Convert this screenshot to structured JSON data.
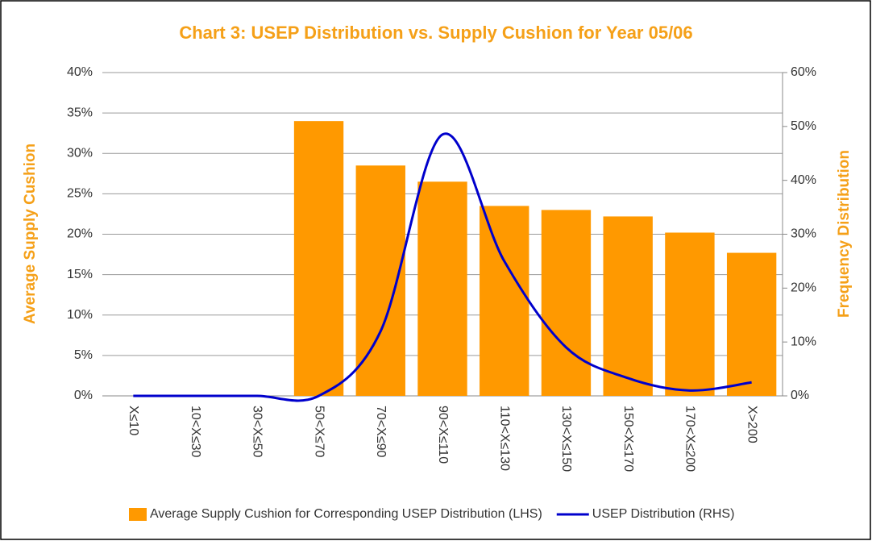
{
  "chart_data": {
    "type": "bar",
    "title": "Chart 3: USEP Distribution vs. Supply Cushion for Year 05/06",
    "ylabel": "Average Supply Cushion",
    "y2label": "Frequency Distribution",
    "categories": [
      "X≤10",
      "10<X≤30",
      "30<X≤50",
      "50<X≤70",
      "70<X≤90",
      "90<X≤110",
      "110<X≤130",
      "130<X≤150",
      "150<X≤170",
      "170<X≤200",
      "X>200"
    ],
    "series": [
      {
        "name": "Average Supply Cushion for Corresponding USEP Distribution (LHS)",
        "type": "bar",
        "color": "#ff9900",
        "values": [
          0,
          0,
          0,
          34,
          28.5,
          26.5,
          23.5,
          23,
          22.2,
          20.2,
          17.7
        ]
      },
      {
        "name": "USEP Distribution (RHS)",
        "type": "line",
        "axis": "y2",
        "color": "#0000cc",
        "values": [
          0,
          0,
          0,
          0,
          12,
          48.5,
          25,
          9,
          3.3,
          1,
          2.5
        ]
      }
    ],
    "ylim": [
      0,
      40
    ],
    "yticks": [
      {
        "value": 0,
        "label": "0%"
      },
      {
        "value": 5,
        "label": "5%"
      },
      {
        "value": 10,
        "label": "10%"
      },
      {
        "value": 15,
        "label": "15%"
      },
      {
        "value": 20,
        "label": "20%"
      },
      {
        "value": 25,
        "label": "25%"
      },
      {
        "value": 30,
        "label": "30%"
      },
      {
        "value": 35,
        "label": "35%"
      },
      {
        "value": 40,
        "label": "40%"
      }
    ],
    "y2lim": [
      0,
      60
    ],
    "y2ticks": [
      {
        "value": 0,
        "label": "0%"
      },
      {
        "value": 10,
        "label": "10%"
      },
      {
        "value": 20,
        "label": "20%"
      },
      {
        "value": 30,
        "label": "30%"
      },
      {
        "value": 40,
        "label": "40%"
      },
      {
        "value": 50,
        "label": "50%"
      },
      {
        "value": 60,
        "label": "60%"
      }
    ],
    "grid": true,
    "legend": "bottom"
  }
}
